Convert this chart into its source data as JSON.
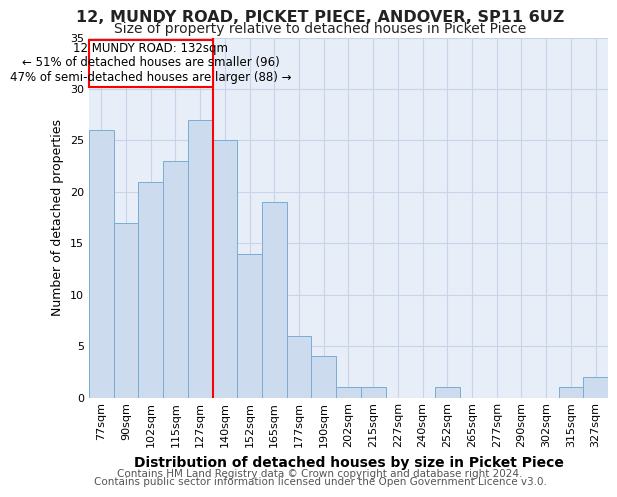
{
  "title_line1": "12, MUNDY ROAD, PICKET PIECE, ANDOVER, SP11 6UZ",
  "title_line2": "Size of property relative to detached houses in Picket Piece",
  "xlabel": "Distribution of detached houses by size in Picket Piece",
  "ylabel": "Number of detached properties",
  "categories": [
    "77sqm",
    "90sqm",
    "102sqm",
    "115sqm",
    "127sqm",
    "140sqm",
    "152sqm",
    "165sqm",
    "177sqm",
    "190sqm",
    "202sqm",
    "215sqm",
    "227sqm",
    "240sqm",
    "252sqm",
    "265sqm",
    "277sqm",
    "290sqm",
    "302sqm",
    "315sqm",
    "327sqm"
  ],
  "values": [
    26,
    17,
    21,
    23,
    27,
    25,
    14,
    19,
    6,
    4,
    1,
    1,
    0,
    0,
    1,
    0,
    0,
    0,
    0,
    1,
    2
  ],
  "bar_color": "#ccdcee",
  "bar_edge_color": "#7aadd4",
  "marker_label": "12 MUNDY ROAD: 132sqm",
  "marker_sublabel1": "← 51% of detached houses are smaller (96)",
  "marker_sublabel2": "47% of semi-detached houses are larger (88) →",
  "ylim": [
    0,
    35
  ],
  "yticks": [
    0,
    5,
    10,
    15,
    20,
    25,
    30,
    35
  ],
  "grid_color": "#c8d4e8",
  "plot_bg_color": "#e8eef8",
  "footer_line1": "Contains HM Land Registry data © Crown copyright and database right 2024.",
  "footer_line2": "Contains public sector information licensed under the Open Government Licence v3.0.",
  "title_fontsize": 11.5,
  "subtitle_fontsize": 10,
  "ylabel_fontsize": 9,
  "xlabel_fontsize": 10,
  "tick_fontsize": 8,
  "annotation_fontsize": 8.5,
  "footer_fontsize": 7.5
}
